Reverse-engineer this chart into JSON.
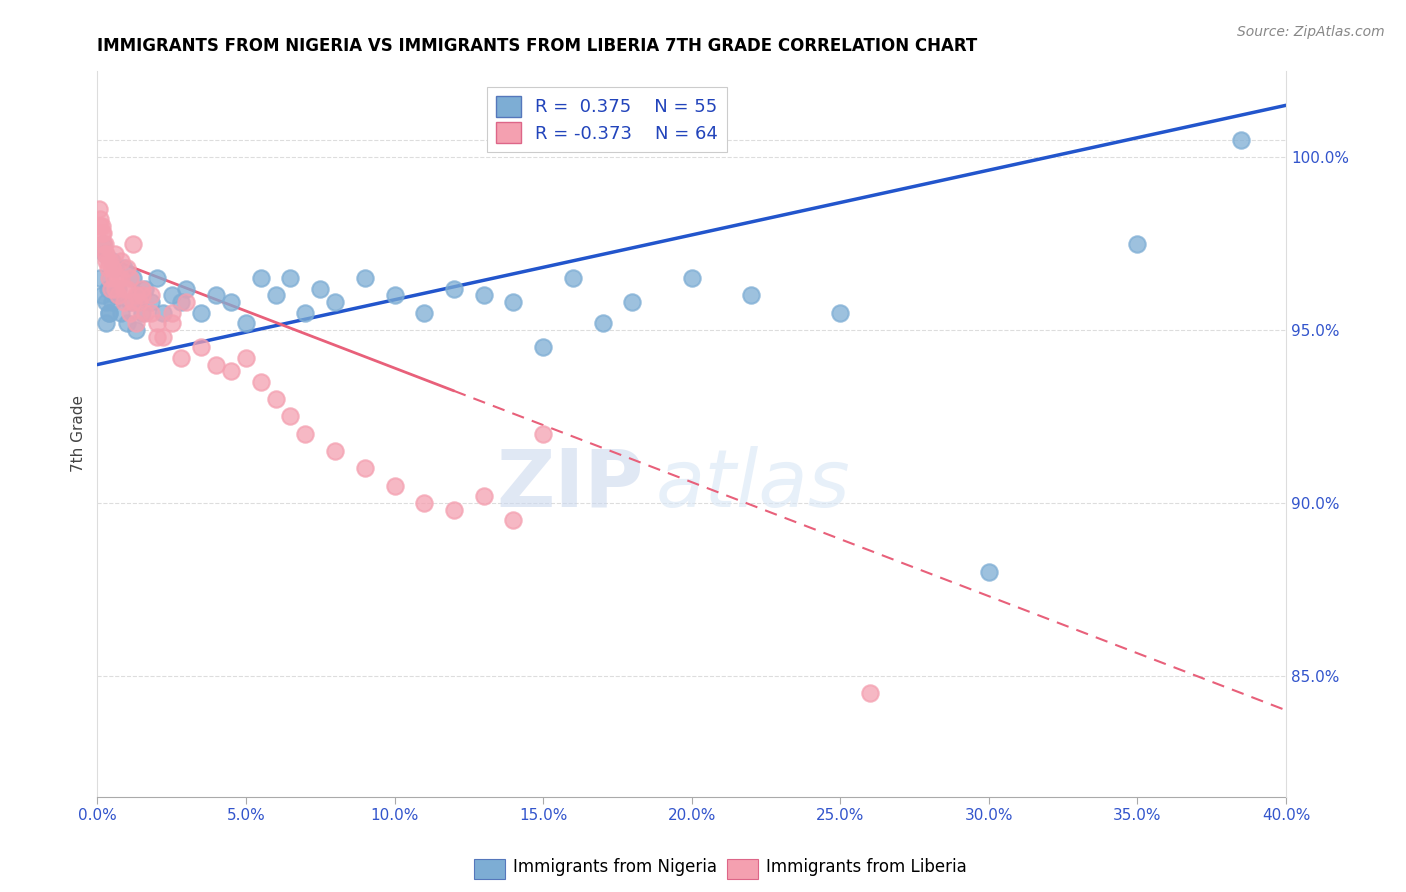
{
  "title": "IMMIGRANTS FROM NIGERIA VS IMMIGRANTS FROM LIBERIA 7TH GRADE CORRELATION CHART",
  "source": "Source: ZipAtlas.com",
  "ylabel": "7th Grade",
  "right_yticks": [
    85.0,
    90.0,
    95.0,
    100.0
  ],
  "right_yticklabels": [
    "85.0%",
    "90.0%",
    "95.0%",
    "100.0%"
  ],
  "xmin": 0.0,
  "xmax": 40.0,
  "ymin": 81.5,
  "ymax": 102.5,
  "nigeria_color": "#7dadd4",
  "liberia_color": "#f4a0b0",
  "nigeria_line_color": "#2255cc",
  "liberia_line_color": "#e8607a",
  "legend_nigeria_R": "0.375",
  "legend_nigeria_N": "55",
  "legend_liberia_R": "-0.373",
  "legend_liberia_N": "64",
  "nigeria_line_x0": 0.0,
  "nigeria_line_y0": 94.0,
  "nigeria_line_x1": 40.0,
  "nigeria_line_y1": 101.5,
  "liberia_line_x0": 0.0,
  "liberia_line_y0": 97.2,
  "liberia_line_x1": 40.0,
  "liberia_line_y1": 84.0,
  "nigeria_x": [
    0.1,
    0.15,
    0.2,
    0.25,
    0.3,
    0.35,
    0.4,
    0.5,
    0.6,
    0.7,
    0.8,
    0.9,
    1.0,
    1.1,
    1.2,
    1.3,
    1.4,
    1.5,
    1.6,
    1.8,
    2.0,
    2.2,
    2.5,
    2.8,
    3.0,
    3.5,
    4.0,
    4.5,
    5.0,
    5.5,
    6.0,
    6.5,
    7.0,
    7.5,
    8.0,
    9.0,
    10.0,
    11.0,
    12.0,
    13.0,
    14.0,
    15.0,
    16.0,
    17.0,
    18.0,
    20.0,
    22.0,
    25.0,
    30.0,
    35.0,
    0.3,
    0.4,
    0.5,
    0.6,
    38.5
  ],
  "nigeria_y": [
    96.5,
    96.0,
    97.5,
    97.2,
    95.8,
    96.2,
    95.5,
    97.0,
    96.8,
    96.2,
    95.5,
    96.8,
    95.2,
    95.8,
    96.5,
    95.0,
    96.0,
    95.5,
    96.2,
    95.8,
    96.5,
    95.5,
    96.0,
    95.8,
    96.2,
    95.5,
    96.0,
    95.8,
    95.2,
    96.5,
    96.0,
    96.5,
    95.5,
    96.2,
    95.8,
    96.5,
    96.0,
    95.5,
    96.2,
    96.0,
    95.8,
    94.5,
    96.5,
    95.2,
    95.8,
    96.5,
    96.0,
    95.5,
    88.0,
    97.5,
    95.2,
    95.5,
    95.8,
    96.0,
    100.5
  ],
  "liberia_x": [
    0.05,
    0.1,
    0.15,
    0.2,
    0.25,
    0.3,
    0.4,
    0.5,
    0.6,
    0.7,
    0.8,
    0.9,
    1.0,
    1.1,
    1.2,
    1.3,
    1.4,
    1.5,
    1.6,
    1.8,
    2.0,
    2.2,
    2.5,
    2.8,
    3.0,
    3.5,
    4.0,
    4.5,
    5.0,
    5.5,
    6.0,
    6.5,
    7.0,
    8.0,
    9.0,
    10.0,
    11.0,
    12.0,
    13.0,
    14.0,
    0.1,
    0.15,
    0.2,
    0.25,
    0.3,
    0.35,
    0.4,
    0.45,
    0.5,
    0.55,
    0.6,
    0.7,
    0.8,
    0.9,
    1.0,
    1.1,
    1.2,
    1.3,
    1.5,
    1.8,
    2.0,
    2.5,
    15.0,
    26.0
  ],
  "liberia_y": [
    98.5,
    98.2,
    98.0,
    97.8,
    97.5,
    97.2,
    97.0,
    96.8,
    97.2,
    96.5,
    97.0,
    96.2,
    96.8,
    96.5,
    97.5,
    96.0,
    95.8,
    96.2,
    95.5,
    96.0,
    95.2,
    94.8,
    95.5,
    94.2,
    95.8,
    94.5,
    94.0,
    93.8,
    94.2,
    93.5,
    93.0,
    92.5,
    92.0,
    91.5,
    91.0,
    90.5,
    90.0,
    89.8,
    90.2,
    89.5,
    98.0,
    97.8,
    97.5,
    97.2,
    97.0,
    96.8,
    96.5,
    96.2,
    96.8,
    96.5,
    96.2,
    96.0,
    96.5,
    95.8,
    96.2,
    95.5,
    95.8,
    95.2,
    96.0,
    95.5,
    94.8,
    95.2,
    92.0,
    84.5
  ]
}
